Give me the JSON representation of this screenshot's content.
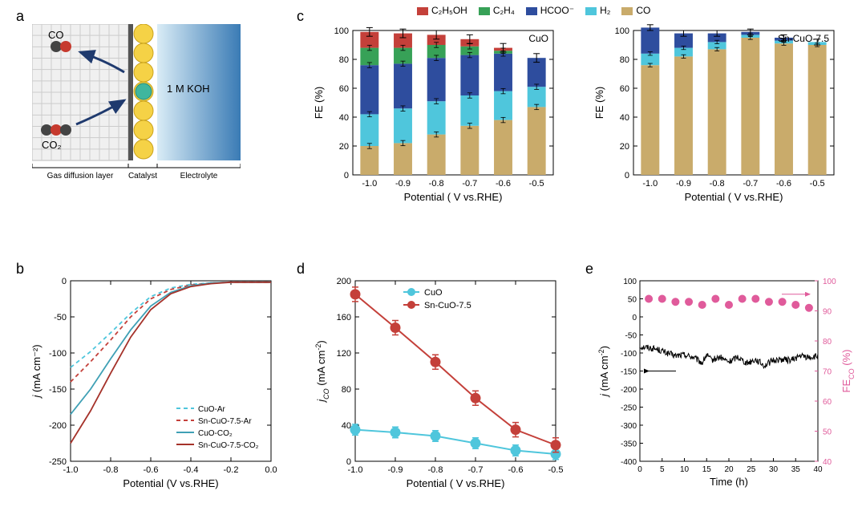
{
  "colors": {
    "c2h5oh": "#c4403a",
    "c2h4": "#37a157",
    "hcoo": "#2e4d9e",
    "h2": "#4fc6dc",
    "co": "#c9ab6b",
    "cuo_line": "#4fc6dc",
    "sncuo_line": "#c4403a",
    "cuo_ar": "#4fc6dc",
    "sn_ar": "#c4403a",
    "cuo_co2": "#3fa0b5",
    "sn_co2": "#a5322a",
    "j_line": "#000000",
    "fe_dots": "#e05b9b",
    "error_bar": "#000000",
    "axis": "#000000",
    "background": "#ffffff"
  },
  "legend_top": {
    "items": [
      {
        "label": "C₂H₅OH",
        "color": "#c4403a"
      },
      {
        "label": "C₂H₄",
        "color": "#37a157"
      },
      {
        "label": "HCOO⁻",
        "color": "#2e4d9e"
      },
      {
        "label": "H₂",
        "color": "#4fc6dc"
      },
      {
        "label": "CO",
        "color": "#c9ab6b"
      }
    ]
  },
  "panel_a": {
    "label": "a",
    "co_label": "CO",
    "co2_label": "CO₂",
    "electrolyte_label": "1 M KOH",
    "bottom_labels": [
      "Gas diffusion layer",
      "Catalyst",
      "Electrolyte"
    ]
  },
  "panel_b": {
    "label": "b",
    "xlabel": "Potential (V vs.RHE)",
    "ylabel": "j (mA cm⁻²)",
    "xlim": [
      -1.0,
      0.0
    ],
    "xticks": [
      "-1.0",
      "-0.8",
      "-0.6",
      "-0.4",
      "-0.2",
      "0.0"
    ],
    "ylim": [
      -250,
      0
    ],
    "yticks": [
      "0",
      "-50",
      "-100",
      "-150",
      "-200",
      "-250"
    ],
    "series": [
      {
        "name": "CuO-Ar",
        "color": "#4fc6dc",
        "dash": true,
        "points": [
          [
            -1.0,
            -120
          ],
          [
            -0.9,
            -98
          ],
          [
            -0.8,
            -72
          ],
          [
            -0.7,
            -45
          ],
          [
            -0.6,
            -22
          ],
          [
            -0.5,
            -10
          ],
          [
            -0.4,
            -5
          ],
          [
            -0.3,
            -3
          ],
          [
            -0.2,
            -2
          ],
          [
            -0.1,
            -2
          ],
          [
            0.0,
            -2
          ]
        ]
      },
      {
        "name": "Sn-CuO-7.5-Ar",
        "color": "#c4403a",
        "dash": true,
        "points": [
          [
            -1.0,
            -140
          ],
          [
            -0.9,
            -112
          ],
          [
            -0.8,
            -82
          ],
          [
            -0.7,
            -50
          ],
          [
            -0.6,
            -25
          ],
          [
            -0.5,
            -12
          ],
          [
            -0.4,
            -6
          ],
          [
            -0.3,
            -3
          ],
          [
            -0.2,
            -2
          ],
          [
            -0.1,
            -2
          ],
          [
            0.0,
            -2
          ]
        ]
      },
      {
        "name": "CuO-CO₂",
        "color": "#3fa0b5",
        "dash": false,
        "points": [
          [
            -1.0,
            -185
          ],
          [
            -0.9,
            -150
          ],
          [
            -0.8,
            -108
          ],
          [
            -0.7,
            -68
          ],
          [
            -0.6,
            -35
          ],
          [
            -0.5,
            -16
          ],
          [
            -0.4,
            -7
          ],
          [
            -0.3,
            -3
          ],
          [
            -0.2,
            -2
          ],
          [
            -0.1,
            -2
          ],
          [
            0.0,
            -2
          ]
        ]
      },
      {
        "name": "Sn-CuO-7.5-CO₂",
        "color": "#a5322a",
        "dash": false,
        "points": [
          [
            -1.0,
            -225
          ],
          [
            -0.9,
            -180
          ],
          [
            -0.8,
            -128
          ],
          [
            -0.7,
            -78
          ],
          [
            -0.6,
            -40
          ],
          [
            -0.5,
            -18
          ],
          [
            -0.4,
            -8
          ],
          [
            -0.3,
            -4
          ],
          [
            -0.2,
            -2
          ],
          [
            -0.1,
            -2
          ],
          [
            0.0,
            -2
          ]
        ]
      }
    ]
  },
  "panel_c1": {
    "label": "c",
    "title": "CuO",
    "xlabel": "Potential ( V vs.RHE)",
    "ylabel": "FE (%)",
    "ylim": [
      0,
      100
    ],
    "yticks": [
      "0",
      "20",
      "40",
      "60",
      "80",
      "100"
    ],
    "categories": [
      "-1.0",
      "-0.9",
      "-0.8",
      "-0.7",
      "-0.6",
      "-0.5"
    ],
    "stacks_order": [
      "co",
      "h2",
      "hcoo",
      "c2h4",
      "c2h5oh"
    ],
    "stacks": {
      "-1.0": {
        "co": 20,
        "h2": 22,
        "hcoo": 34,
        "c2h4": 12,
        "c2h5oh": 11
      },
      "-0.9": {
        "co": 22,
        "h2": 24,
        "hcoo": 31,
        "c2h4": 11,
        "c2h5oh": 10
      },
      "-0.8": {
        "co": 28,
        "h2": 23,
        "hcoo": 30,
        "c2h4": 9,
        "c2h5oh": 7
      },
      "-0.7": {
        "co": 34,
        "h2": 21,
        "hcoo": 28,
        "c2h4": 6,
        "c2h5oh": 5
      },
      "-0.6": {
        "co": 38,
        "h2": 20,
        "hcoo": 26,
        "c2h4": 2,
        "c2h5oh": 2
      },
      "-0.5": {
        "co": 47,
        "h2": 14,
        "hcoo": 20,
        "c2h4": 0,
        "c2h5oh": 0
      }
    },
    "bar_width": 0.55,
    "error": 3
  },
  "panel_c2": {
    "title": "Sn-CuO-7.5",
    "xlabel": "Potential ( V vs.RHE)",
    "ylabel": "FE (%)",
    "ylim": [
      0,
      100
    ],
    "yticks": [
      "0",
      "20",
      "40",
      "60",
      "80",
      "100"
    ],
    "categories": [
      "-1.0",
      "-0.9",
      "-0.8",
      "-0.7",
      "-0.6",
      "-0.5"
    ],
    "stacks_order": [
      "co",
      "h2",
      "hcoo"
    ],
    "stacks": {
      "-1.0": {
        "co": 76,
        "h2": 8,
        "hcoo": 18
      },
      "-0.9": {
        "co": 82,
        "h2": 6,
        "hcoo": 10
      },
      "-0.8": {
        "co": 87,
        "h2": 5,
        "hcoo": 6
      },
      "-0.7": {
        "co": 95,
        "h2": 2,
        "hcoo": 2
      },
      "-0.6": {
        "co": 91,
        "h2": 2,
        "hcoo": 2
      },
      "-0.5": {
        "co": 90,
        "h2": 2,
        "hcoo": 0
      }
    },
    "bar_width": 0.55,
    "error": 2
  },
  "panel_d": {
    "label": "d",
    "xlabel": "Potential ( V vs.RHE)",
    "ylabel": "jᴄₒ (mA cm⁻²)",
    "ylabel_plain": "jCO (mA cm-2)",
    "xlim": [
      -1.0,
      -0.5
    ],
    "xticks": [
      "-1.0",
      "-0.9",
      "-0.8",
      "-0.7",
      "-0.6",
      "-0.5"
    ],
    "ylim": [
      0,
      200
    ],
    "yticks": [
      "0",
      "40",
      "80",
      "120",
      "160",
      "200"
    ],
    "series": [
      {
        "name": "CuO",
        "color": "#4fc6dc",
        "points": [
          [
            -1.0,
            35
          ],
          [
            -0.9,
            32
          ],
          [
            -0.8,
            28
          ],
          [
            -0.7,
            20
          ],
          [
            -0.6,
            12
          ],
          [
            -0.5,
            8
          ]
        ],
        "err": 6
      },
      {
        "name": "Sn-CuO-7.5",
        "color": "#c4403a",
        "points": [
          [
            -1.0,
            185
          ],
          [
            -0.9,
            148
          ],
          [
            -0.8,
            110
          ],
          [
            -0.7,
            70
          ],
          [
            -0.6,
            35
          ],
          [
            -0.5,
            18
          ]
        ],
        "err": 8
      }
    ],
    "marker_r": 6
  },
  "panel_e": {
    "label": "e",
    "xlabel": "Time (h)",
    "ylabel_left": "j (mA cm⁻²)",
    "ylabel_right": "FEᴄₒ (%)",
    "ylabel_right_plain": "FECO (%)",
    "xlim": [
      0,
      40
    ],
    "xticks": [
      "0",
      "5",
      "10",
      "15",
      "20",
      "25",
      "30",
      "35",
      "40"
    ],
    "ylim_left": [
      -400,
      100
    ],
    "yticks_left": [
      "-400",
      "-350",
      "-300",
      "-250",
      "-200",
      "-150",
      "-100",
      "-50",
      "0",
      "50",
      "100"
    ],
    "ylim_right": [
      40,
      100
    ],
    "yticks_right": [
      "40",
      "50",
      "60",
      "70",
      "80",
      "90",
      "100"
    ],
    "j_noise_amp": 18,
    "j_baseline": [
      [
        0,
        -82
      ],
      [
        2,
        -85
      ],
      [
        4,
        -90
      ],
      [
        6,
        -100
      ],
      [
        8,
        -108
      ],
      [
        10,
        -105
      ],
      [
        12,
        -112
      ],
      [
        14,
        -128
      ],
      [
        15,
        -105
      ],
      [
        16,
        -120
      ],
      [
        18,
        -112
      ],
      [
        20,
        -125
      ],
      [
        22,
        -110
      ],
      [
        24,
        -128
      ],
      [
        26,
        -118
      ],
      [
        28,
        -135
      ],
      [
        30,
        -120
      ],
      [
        32,
        -118
      ],
      [
        34,
        -120
      ],
      [
        36,
        -108
      ],
      [
        38,
        -112
      ],
      [
        40,
        -110
      ]
    ],
    "fe_points": [
      [
        2,
        94
      ],
      [
        5,
        94
      ],
      [
        8,
        93
      ],
      [
        11,
        93
      ],
      [
        14,
        92
      ],
      [
        17,
        94
      ],
      [
        20,
        92
      ],
      [
        23,
        94
      ],
      [
        26,
        94
      ],
      [
        29,
        93
      ],
      [
        32,
        93
      ],
      [
        35,
        92
      ],
      [
        38,
        91
      ]
    ],
    "fe_dot_r": 5
  }
}
